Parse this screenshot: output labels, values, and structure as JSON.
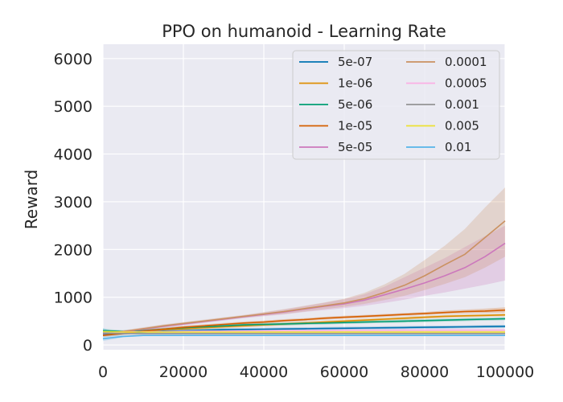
{
  "chart_data": {
    "type": "line",
    "title": "PPO on humanoid - Learning Rate",
    "xlabel": "",
    "ylabel": "Reward",
    "xlim": [
      0,
      100000
    ],
    "ylim": [
      -100,
      6300
    ],
    "xticks": [
      0,
      20000,
      40000,
      60000,
      80000,
      100000
    ],
    "xtick_labels": [
      "0",
      "20000",
      "40000",
      "60000",
      "80000",
      "100000"
    ],
    "yticks": [
      0,
      1000,
      2000,
      3000,
      4000,
      5000,
      6000
    ],
    "ytick_labels": [
      "0",
      "1000",
      "2000",
      "3000",
      "4000",
      "5000",
      "6000"
    ],
    "grid": true,
    "legend_position": "top-right",
    "legend_columns": 2,
    "x": [
      0,
      5000,
      10000,
      15000,
      20000,
      25000,
      30000,
      35000,
      40000,
      45000,
      50000,
      55000,
      60000,
      65000,
      70000,
      75000,
      80000,
      85000,
      90000,
      95000,
      100000
    ],
    "series": [
      {
        "name": "5e-07",
        "color": "#0173b2",
        "values": [
          230,
          250,
          270,
          290,
          300,
          310,
          320,
          325,
          330,
          335,
          340,
          345,
          350,
          355,
          360,
          365,
          370,
          375,
          380,
          385,
          390
        ],
        "lower": [
          200,
          220,
          240,
          260,
          270,
          280,
          290,
          295,
          300,
          305,
          310,
          315,
          320,
          325,
          330,
          335,
          340,
          345,
          350,
          355,
          360
        ],
        "upper": [
          260,
          280,
          300,
          320,
          330,
          340,
          350,
          355,
          360,
          365,
          370,
          375,
          380,
          385,
          390,
          395,
          400,
          405,
          410,
          415,
          420
        ]
      },
      {
        "name": "1e-06",
        "color": "#de8f05",
        "values": [
          240,
          260,
          290,
          320,
          340,
          360,
          380,
          400,
          420,
          440,
          460,
          480,
          500,
          520,
          540,
          560,
          580,
          600,
          610,
          620,
          630
        ],
        "lower": [
          210,
          230,
          260,
          290,
          310,
          330,
          350,
          370,
          390,
          410,
          430,
          450,
          470,
          490,
          510,
          530,
          550,
          570,
          580,
          590,
          600
        ],
        "upper": [
          270,
          290,
          320,
          350,
          370,
          390,
          410,
          430,
          450,
          470,
          490,
          510,
          530,
          550,
          570,
          590,
          610,
          630,
          640,
          650,
          660
        ]
      },
      {
        "name": "5e-06",
        "color": "#029e73",
        "values": [
          300,
          280,
          300,
          330,
          360,
          380,
          400,
          420,
          430,
          440,
          450,
          460,
          470,
          480,
          490,
          500,
          510,
          520,
          530,
          540,
          550
        ],
        "lower": [
          260,
          250,
          270,
          300,
          330,
          350,
          370,
          390,
          400,
          410,
          420,
          430,
          440,
          450,
          460,
          470,
          480,
          490,
          500,
          510,
          520
        ],
        "upper": [
          340,
          310,
          330,
          360,
          390,
          410,
          430,
          450,
          460,
          470,
          480,
          490,
          500,
          510,
          520,
          530,
          540,
          550,
          560,
          570,
          580
        ]
      },
      {
        "name": "1e-05",
        "color": "#d55e00",
        "values": [
          200,
          240,
          290,
          330,
          370,
          400,
          430,
          460,
          480,
          510,
          530,
          560,
          580,
          600,
          620,
          640,
          660,
          680,
          700,
          710,
          730
        ],
        "lower": [
          170,
          210,
          260,
          300,
          340,
          370,
          400,
          430,
          450,
          480,
          500,
          530,
          550,
          570,
          590,
          610,
          630,
          650,
          660,
          670,
          680
        ],
        "upper": [
          230,
          270,
          320,
          360,
          400,
          430,
          460,
          490,
          510,
          540,
          560,
          590,
          610,
          630,
          650,
          670,
          690,
          720,
          740,
          760,
          790
        ]
      },
      {
        "name": "5e-05",
        "color": "#cc78bc",
        "values": [
          240,
          270,
          330,
          390,
          440,
          490,
          540,
          590,
          640,
          690,
          750,
          810,
          860,
          940,
          1050,
          1170,
          1300,
          1450,
          1620,
          1850,
          2130
        ],
        "lower": [
          210,
          240,
          300,
          360,
          410,
          460,
          510,
          560,
          600,
          640,
          690,
          730,
          770,
          820,
          880,
          950,
          1030,
          1100,
          1180,
          1260,
          1350
        ],
        "upper": [
          270,
          300,
          360,
          420,
          470,
          520,
          570,
          620,
          680,
          740,
          810,
          880,
          960,
          1060,
          1220,
          1420,
          1620,
          1820,
          2050,
          2280,
          2500
        ]
      },
      {
        "name": "0.0001",
        "color": "#ca9161",
        "values": [
          250,
          280,
          340,
          400,
          450,
          500,
          550,
          600,
          650,
          700,
          760,
          820,
          880,
          970,
          1100,
          1250,
          1450,
          1680,
          1900,
          2250,
          2600
        ],
        "lower": [
          220,
          250,
          310,
          370,
          420,
          470,
          520,
          570,
          610,
          650,
          700,
          750,
          800,
          860,
          940,
          1030,
          1150,
          1280,
          1420,
          1620,
          1850
        ],
        "upper": [
          280,
          310,
          370,
          430,
          480,
          530,
          580,
          630,
          690,
          750,
          820,
          890,
          970,
          1090,
          1270,
          1490,
          1780,
          2080,
          2430,
          2880,
          3300
        ]
      },
      {
        "name": "0.0005",
        "color": "#fbafe4",
        "values": [
          260,
          270,
          275,
          280,
          285,
          290,
          290,
          295,
          295,
          300,
          300,
          300,
          305,
          305,
          305,
          310,
          310,
          310,
          310,
          310,
          310
        ],
        "lower": [
          230,
          240,
          245,
          250,
          255,
          260,
          260,
          265,
          265,
          270,
          270,
          270,
          275,
          275,
          275,
          280,
          280,
          280,
          280,
          280,
          280
        ],
        "upper": [
          290,
          300,
          305,
          310,
          315,
          320,
          320,
          325,
          325,
          330,
          330,
          330,
          335,
          335,
          335,
          340,
          340,
          340,
          340,
          340,
          340
        ]
      },
      {
        "name": "0.001",
        "color": "#949494",
        "values": [
          250,
          240,
          240,
          240,
          240,
          240,
          240,
          240,
          240,
          240,
          240,
          240,
          240,
          240,
          240,
          240,
          240,
          240,
          240,
          240,
          240
        ],
        "lower": [
          220,
          215,
          215,
          215,
          215,
          215,
          215,
          215,
          215,
          215,
          215,
          215,
          215,
          215,
          215,
          215,
          215,
          215,
          215,
          215,
          215
        ],
        "upper": [
          280,
          265,
          265,
          265,
          265,
          265,
          265,
          265,
          265,
          265,
          265,
          265,
          265,
          265,
          265,
          265,
          265,
          265,
          265,
          265,
          265
        ]
      },
      {
        "name": "0.005",
        "color": "#ece133",
        "values": [
          280,
          270,
          270,
          270,
          270,
          270,
          270,
          270,
          270,
          270,
          270,
          270,
          270,
          270,
          270,
          270,
          270,
          270,
          270,
          270,
          270
        ],
        "lower": [
          250,
          245,
          245,
          245,
          245,
          245,
          245,
          245,
          245,
          245,
          245,
          245,
          245,
          245,
          245,
          245,
          245,
          245,
          245,
          245,
          245
        ],
        "upper": [
          310,
          295,
          295,
          295,
          295,
          295,
          295,
          295,
          295,
          295,
          295,
          295,
          295,
          295,
          295,
          295,
          295,
          295,
          295,
          295,
          295
        ]
      },
      {
        "name": "0.01",
        "color": "#56b4e9",
        "values": [
          130,
          180,
          200,
          200,
          200,
          200,
          200,
          200,
          200,
          200,
          200,
          200,
          200,
          200,
          200,
          200,
          200,
          200,
          200,
          200,
          200
        ],
        "lower": [
          80,
          160,
          185,
          185,
          185,
          185,
          185,
          185,
          185,
          185,
          185,
          185,
          185,
          185,
          185,
          185,
          185,
          185,
          185,
          185,
          185
        ],
        "upper": [
          360,
          200,
          215,
          215,
          215,
          215,
          215,
          215,
          215,
          215,
          215,
          215,
          215,
          215,
          215,
          215,
          215,
          215,
          215,
          215,
          215
        ]
      }
    ]
  }
}
